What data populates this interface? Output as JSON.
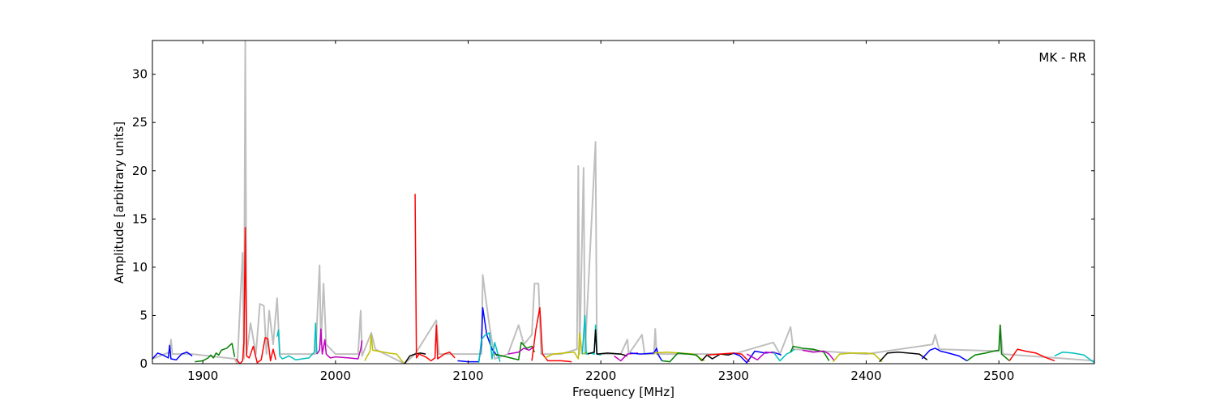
{
  "chart_data": {
    "type": "line",
    "annotation": "MK - RR",
    "xlabel": "Frequency [MHz]",
    "ylabel": "Amplitude [arbitrary units]",
    "xlim": [
      1862,
      2572
    ],
    "ylim": [
      0,
      33.5
    ],
    "xticks": [
      1900,
      2000,
      2100,
      2200,
      2300,
      2400,
      2500
    ],
    "yticks": [
      0,
      5,
      10,
      15,
      20,
      25,
      30
    ],
    "grid": false,
    "series": [
      {
        "color": "#bfbfbf",
        "x": [
          1862,
          1875,
          1876,
          1877,
          1892,
          1924,
          1926,
          1930,
          1931,
          1932,
          1933,
          1936,
          1940,
          1943,
          1946,
          1948,
          1950,
          1953,
          1956,
          1958,
          1970,
          1985,
          1988,
          1989,
          1991,
          1993,
          2000,
          2017,
          2019,
          2020,
          2027,
          2030,
          2052,
          2060,
          2076,
          2078,
          2092,
          2095,
          2110,
          2111,
          2113,
          2116,
          2120,
          2130,
          2138,
          2142,
          2148,
          2150,
          2153,
          2155,
          2170,
          2182,
          2183,
          2184,
          2187,
          2188,
          2196,
          2197,
          2215,
          2220,
          2221,
          2231,
          2233,
          2240,
          2241,
          2242,
          2300,
          2330,
          2335,
          2343,
          2345,
          2400,
          2450,
          2452,
          2455,
          2500,
          2501,
          2503,
          2572
        ],
        "values": [
          0.5,
          1.2,
          2.5,
          1,
          1,
          0.5,
          0,
          11.5,
          0.5,
          33.5,
          1,
          4.2,
          1,
          6.2,
          6,
          1,
          5.5,
          2,
          6.8,
          1,
          1,
          1,
          10.2,
          2,
          8.3,
          2,
          1,
          1,
          5.5,
          0.8,
          3.2,
          1.5,
          0,
          1,
          4.5,
          1,
          1,
          1,
          1,
          9.2,
          7,
          4,
          0.5,
          1,
          4,
          2,
          3,
          8.3,
          8.3,
          1,
          1,
          1.5,
          20.5,
          1,
          20.3,
          1,
          23,
          1,
          1,
          2.5,
          1,
          3,
          1,
          1,
          3.6,
          1,
          1,
          2.2,
          1,
          3.8,
          1.5,
          1,
          2,
          3,
          1.5,
          1.3,
          4,
          1,
          0.3
        ]
      },
      {
        "color": "#0000ff",
        "x": [
          1862,
          1866,
          1870,
          1874,
          1875,
          1876,
          1880,
          1884,
          1888,
          1892
        ],
        "values": [
          0.5,
          1.1,
          0.9,
          0.6,
          1.9,
          0.5,
          0.4,
          1.0,
          1.2,
          0.8
        ]
      },
      {
        "color": "#008000",
        "x": [
          1894,
          1900,
          1904,
          1906,
          1908,
          1910,
          1912,
          1914,
          1918,
          1922,
          1924
        ],
        "values": [
          0.2,
          0.3,
          0.6,
          0.9,
          0.6,
          1.1,
          0.9,
          1.4,
          1.6,
          2.1,
          0.7
        ]
      },
      {
        "color": "#ff0000",
        "x": [
          1925,
          1928,
          1930,
          1931,
          1932,
          1933,
          1935,
          1938,
          1941,
          1944,
          1947,
          1949,
          1951,
          1953,
          1955
        ],
        "values": [
          0.5,
          0,
          0.3,
          2.3,
          14.1,
          0.8,
          0.6,
          1.8,
          0.1,
          0.4,
          2.7,
          2.6,
          0.3,
          1.5,
          0.4
        ]
      },
      {
        "color": "#00bfbf",
        "x": [
          1956,
          1957,
          1958,
          1960,
          1965,
          1970,
          1975,
          1980,
          1984,
          1985,
          1986
        ],
        "values": [
          2.8,
          3.5,
          0.8,
          0.5,
          0.8,
          0.4,
          0.5,
          0.6,
          1.2,
          4.2,
          1.0
        ]
      },
      {
        "color": "#bf00bf",
        "x": [
          1986,
          1988,
          1989,
          1990,
          1992,
          1993,
          1996,
          2000,
          2010,
          2017,
          2019,
          2020
        ],
        "values": [
          1.0,
          1.4,
          3.6,
          1.0,
          2.5,
          1.0,
          0.6,
          0.7,
          0.6,
          0.5,
          1.5,
          2.4
        ]
      },
      {
        "color": "#bfbf00",
        "x": [
          2022,
          2026,
          2027,
          2028,
          2032,
          2040,
          2046,
          2050,
          2052
        ],
        "values": [
          0.3,
          1.3,
          3.0,
          1.4,
          1.3,
          1.1,
          1.0,
          0.3,
          0
        ]
      },
      {
        "color": "#000000",
        "x": [
          2052,
          2056,
          2060,
          2064,
          2068
        ],
        "values": [
          0,
          0.8,
          1.0,
          1.1,
          1.0
        ]
      },
      {
        "color": "#ff0000",
        "x": [
          2060,
          2061,
          2063,
          2068,
          2072,
          2075,
          2076,
          2077,
          2082,
          2086,
          2090
        ],
        "values": [
          17.6,
          0.6,
          1.0,
          0.7,
          0.3,
          0.6,
          4.0,
          0.5,
          1.0,
          1.2,
          0.6
        ]
      },
      {
        "color": "#0000ff",
        "x": [
          2092,
          2100,
          2108,
          2110,
          2111,
          2114,
          2118,
          2122
        ],
        "values": [
          0.3,
          0.2,
          0.2,
          2.0,
          5.8,
          3.0,
          1.5,
          0.8
        ]
      },
      {
        "color": "#00bfbf",
        "x": [
          2108,
          2110,
          2113,
          2116,
          2118,
          2120,
          2124
        ],
        "values": [
          0.1,
          2.5,
          3.0,
          3.2,
          0.5,
          2.2,
          0.2
        ]
      },
      {
        "color": "#008000",
        "x": [
          2120,
          2126,
          2132,
          2138,
          2140,
          2144,
          2148,
          2150
        ],
        "values": [
          1.0,
          0.8,
          0.6,
          0.4,
          2.2,
          1.6,
          1.8,
          1.2
        ]
      },
      {
        "color": "#bf00bf",
        "x": [
          2130,
          2138,
          2142,
          2146,
          2150
        ],
        "values": [
          1.0,
          1.2,
          1.6,
          1.4,
          1.8
        ]
      },
      {
        "color": "#ff0000",
        "x": [
          2148,
          2151,
          2154,
          2156,
          2160,
          2170,
          2178
        ],
        "values": [
          0.3,
          3.5,
          5.8,
          1.0,
          0.3,
          0.3,
          0.2
        ]
      },
      {
        "color": "#bfbf00",
        "x": [
          2158,
          2164,
          2172,
          2180,
          2183,
          2184,
          2186,
          2190
        ],
        "values": [
          0.6,
          1.0,
          1.1,
          1.2,
          0.5,
          3.2,
          1.0,
          1.2
        ]
      },
      {
        "color": "#00bfbf",
        "x": [
          2186,
          2188,
          2189,
          2192,
          2195,
          2196,
          2197,
          2200
        ],
        "values": [
          1.0,
          5.0,
          1.0,
          1.1,
          1.0,
          4.0,
          1.0,
          0.9
        ]
      },
      {
        "color": "#000000",
        "x": [
          2190,
          2195,
          2196,
          2197,
          2205,
          2215,
          2220
        ],
        "values": [
          1.0,
          1.2,
          3.5,
          1.0,
          1.1,
          1.0,
          0.8
        ]
      },
      {
        "color": "#bf00bf",
        "x": [
          2210,
          2215,
          2220,
          2228
        ],
        "values": [
          0.8,
          0.3,
          1.0,
          1.1
        ]
      },
      {
        "color": "#0000ff",
        "x": [
          2222,
          2230,
          2240,
          2242,
          2243,
          2246
        ],
        "values": [
          1.1,
          1.0,
          1.1,
          1.6,
          1.0,
          0.3
        ]
      },
      {
        "color": "#bfbf00",
        "x": [
          2240,
          2250,
          2260,
          2270,
          2278
        ],
        "values": [
          1.1,
          1.2,
          1.1,
          1.0,
          0.3
        ]
      },
      {
        "color": "#008000",
        "x": [
          2246,
          2252,
          2258,
          2266,
          2272,
          2276
        ],
        "values": [
          0.3,
          0.2,
          1.1,
          1.0,
          0.9,
          0.3
        ]
      },
      {
        "color": "#000000",
        "x": [
          2276,
          2280,
          2284,
          2290,
          2296,
          2300
        ],
        "values": [
          0.3,
          0.9,
          0.5,
          1.0,
          0.9,
          1.1
        ]
      },
      {
        "color": "#ff0000",
        "x": [
          2280,
          2290,
          2300,
          2306,
          2312
        ],
        "values": [
          0.9,
          1.0,
          1.1,
          1.0,
          0.2
        ]
      },
      {
        "color": "#0000ff",
        "x": [
          2300,
          2305,
          2310,
          2316,
          2324,
          2330,
          2336
        ],
        "values": [
          1.1,
          0.8,
          0.1,
          1.3,
          1.1,
          1.2,
          0.9
        ]
      },
      {
        "color": "#bf00bf",
        "x": [
          2310,
          2318,
          2324,
          2332
        ],
        "values": [
          1.0,
          0.4,
          1.2,
          1.1
        ]
      },
      {
        "color": "#00bfbf",
        "x": [
          2330,
          2335,
          2340,
          2343,
          2346
        ],
        "values": [
          1.2,
          0.3,
          1.0,
          1.2,
          1.5
        ]
      },
      {
        "color": "#008000",
        "x": [
          2343,
          2345,
          2352,
          2360,
          2368,
          2372
        ],
        "values": [
          1.2,
          1.8,
          1.6,
          1.5,
          1.2,
          0.3
        ]
      },
      {
        "color": "#bf00bf",
        "x": [
          2352,
          2360,
          2368,
          2372,
          2376
        ],
        "values": [
          1.4,
          1.2,
          1.3,
          1.0,
          0.3
        ]
      },
      {
        "color": "#bfbf00",
        "x": [
          2375,
          2380,
          2390,
          2400,
          2406,
          2412
        ],
        "values": [
          0.2,
          1.0,
          1.1,
          1.1,
          1.0,
          0.2
        ]
      },
      {
        "color": "#000000",
        "x": [
          2410,
          2416,
          2424,
          2432,
          2440,
          2446
        ],
        "values": [
          0.2,
          1.1,
          1.2,
          1.1,
          1.0,
          0.4
        ]
      },
      {
        "color": "#0000ff",
        "x": [
          2442,
          2448,
          2452,
          2456,
          2462,
          2470,
          2476
        ],
        "values": [
          0.5,
          1.4,
          1.6,
          1.3,
          1.1,
          0.8,
          0.3
        ]
      },
      {
        "color": "#008000",
        "x": [
          2476,
          2482,
          2490,
          2496,
          2500,
          2501,
          2502,
          2508
        ],
        "values": [
          0.3,
          0.9,
          1.1,
          1.3,
          1.4,
          4.0,
          1.0,
          0.3
        ]
      },
      {
        "color": "#ff0000",
        "x": [
          2508,
          2514,
          2520,
          2528,
          2536,
          2542
        ],
        "values": [
          0.3,
          1.5,
          1.3,
          1.1,
          0.6,
          0.3
        ]
      },
      {
        "color": "#00bfbf",
        "x": [
          2542,
          2548,
          2556,
          2564,
          2572
        ],
        "values": [
          0.8,
          1.2,
          1.1,
          0.9,
          0.1
        ]
      }
    ]
  }
}
